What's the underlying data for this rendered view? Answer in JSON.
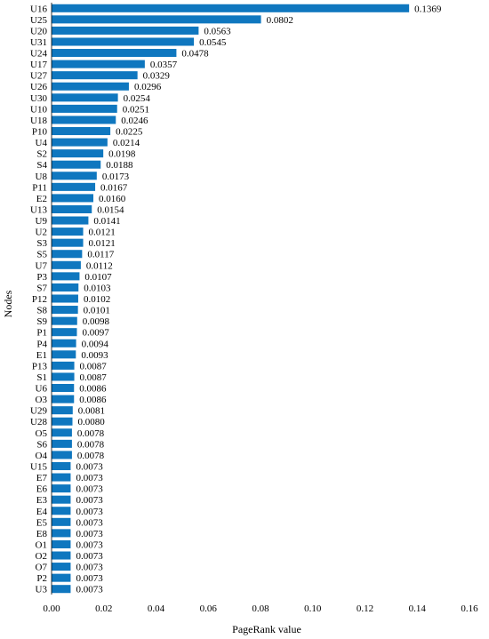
{
  "chart_data": {
    "type": "bar",
    "orientation": "horizontal",
    "categories": [
      "U16",
      "U25",
      "U20",
      "U31",
      "U24",
      "U17",
      "U27",
      "U26",
      "U30",
      "U10",
      "U18",
      "P10",
      "U4",
      "S2",
      "S4",
      "U8",
      "P11",
      "E2",
      "U13",
      "U9",
      "U2",
      "S3",
      "S5",
      "U7",
      "P3",
      "S7",
      "P12",
      "S8",
      "S9",
      "P1",
      "P4",
      "E1",
      "P13",
      "S1",
      "U6",
      "O3",
      "U29",
      "U28",
      "O5",
      "S6",
      "O4",
      "U15",
      "E7",
      "E6",
      "E3",
      "E4",
      "E5",
      "E8",
      "O1",
      "O2",
      "O7",
      "P2",
      "U3"
    ],
    "values": [
      0.1369,
      0.0802,
      0.0563,
      0.0545,
      0.0478,
      0.0357,
      0.0329,
      0.0296,
      0.0254,
      0.0251,
      0.0246,
      0.0225,
      0.0214,
      0.0198,
      0.0188,
      0.0173,
      0.0167,
      0.016,
      0.0154,
      0.0141,
      0.0121,
      0.0121,
      0.0117,
      0.0112,
      0.0107,
      0.0103,
      0.0102,
      0.0101,
      0.0098,
      0.0097,
      0.0094,
      0.0093,
      0.0087,
      0.0087,
      0.0086,
      0.0086,
      0.0081,
      0.008,
      0.0078,
      0.0078,
      0.0078,
      0.0073,
      0.0073,
      0.0073,
      0.0073,
      0.0073,
      0.0073,
      0.0073,
      0.0073,
      0.0073,
      0.0073,
      0.0073,
      0.0073
    ],
    "value_labels": [
      "0.1369",
      "0.0802",
      "0.0563",
      "0.0545",
      "0.0478",
      "0.0357",
      "0.0329",
      "0.0296",
      "0.0254",
      "0.0251",
      "0.0246",
      "0.0225",
      "0.0214",
      "0.0198",
      "0.0188",
      "0.0173",
      "0.0167",
      "0.0160",
      "0.0154",
      "0.0141",
      "0.0121",
      "0.0121",
      "0.0117",
      "0.0112",
      "0.0107",
      "0.0103",
      "0.0102",
      "0.0101",
      "0.0098",
      "0.0097",
      "0.0094",
      "0.0093",
      "0.0087",
      "0.0087",
      "0.0086",
      "0.0086",
      "0.0081",
      "0.0080",
      "0.0078",
      "0.0078",
      "0.0078",
      "0.0073",
      "0.0073",
      "0.0073",
      "0.0073",
      "0.0073",
      "0.0073",
      "0.0073",
      "0.0073",
      "0.0073",
      "0.0073",
      "0.0073",
      "0.0073"
    ],
    "xlabel": "PageRank value",
    "ylabel": "Nodes",
    "xlim": [
      0,
      0.16
    ],
    "xticks": [
      "0.00",
      "0.02",
      "0.04",
      "0.06",
      "0.08",
      "0.10",
      "0.12",
      "0.14",
      "0.16"
    ],
    "grid": false,
    "bar_color": "#0f77bf"
  }
}
